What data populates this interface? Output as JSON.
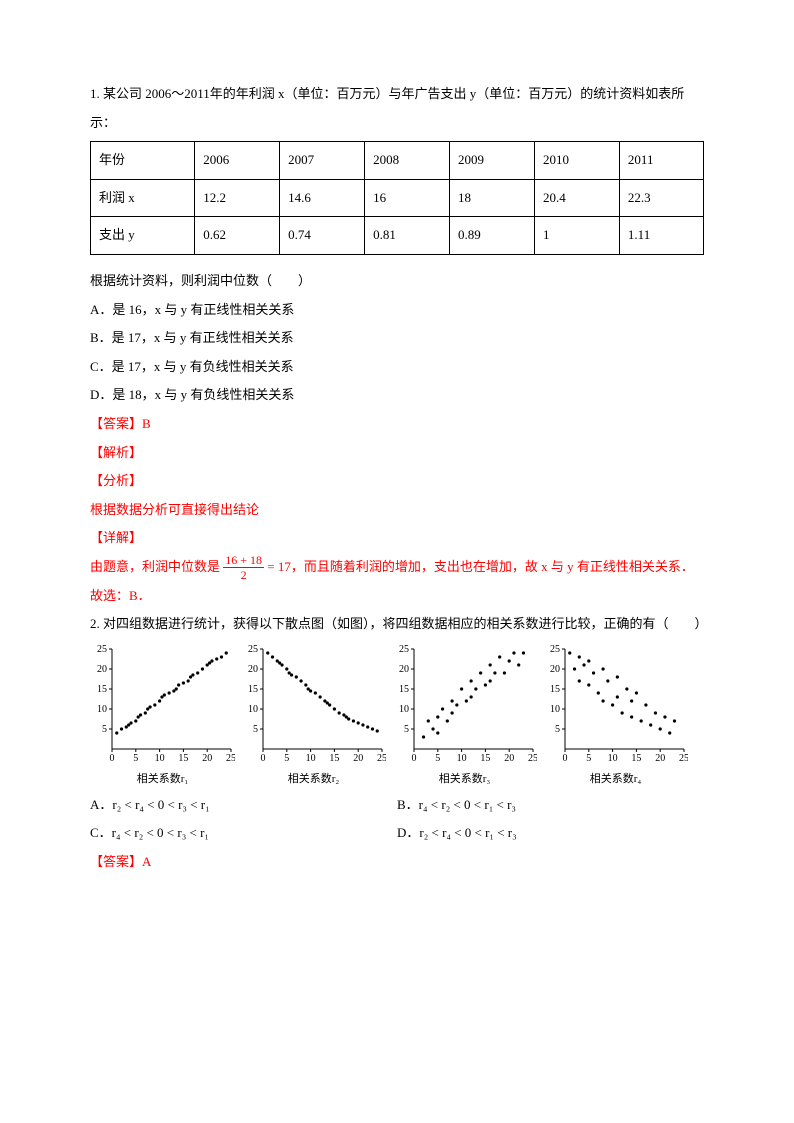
{
  "q1": {
    "intro": "1. 某公司 2006～2011年的年利润 x（单位：百万元）与年广告支出 y（单位：百万元）的统计资料如表所示：",
    "table": {
      "rows": [
        [
          "年份",
          "2006",
          "2007",
          "2008",
          "2009",
          "2010",
          "2011"
        ],
        [
          "利润 x",
          "12.2",
          "14.6",
          "16",
          "18",
          "20.4",
          "22.3"
        ],
        [
          "支出 y",
          "0.62",
          "0.74",
          "0.81",
          "0.89",
          "1",
          "1.11"
        ]
      ],
      "col_widths": [
        "14%",
        "14.3%",
        "14.3%",
        "14.3%",
        "14.3%",
        "14.3%",
        "14.3%"
      ]
    },
    "stem": "根据统计资料，则利润中位数（　　）",
    "opts": {
      "A": "A．是 16，x 与 y 有正线性相关关系",
      "B": "B．是 17，x 与 y 有正线性相关关系",
      "C": "C．是 17，x 与 y 有负线性相关关系",
      "D": "D．是 18，x 与 y 有负线性相关关系"
    },
    "ans": "【答案】B",
    "jiexi": "【解析】",
    "fenxi": "【分析】",
    "fenxi_body": "根据数据分析可直接得出结论",
    "xiangjie": "【详解】",
    "xiangjie_pre": "由题意，利润中位数是 ",
    "frac_num": "16 + 18",
    "frac_den": "2",
    "xiangjie_mid": " = 17，而且随着利润的增加，支出也在增加，故 x 与 y 有正线性相关关系．",
    "guxuan": "故选：B．"
  },
  "q2": {
    "intro": "2. 对四组数据进行统计，获得以下散点图（如图），将四组数据相应的相关系数进行比较，正确的有（　　）",
    "charts": {
      "type": "scatter",
      "width": 145,
      "height": 120,
      "xlim": [
        0,
        25
      ],
      "ylim": [
        0,
        25
      ],
      "xticks": [
        0,
        5,
        10,
        15,
        20,
        25
      ],
      "yticks": [
        5,
        10,
        15,
        20,
        25
      ],
      "axis_color": "#000000",
      "point_color": "#000000",
      "point_radius": 1.6,
      "tick_fontsize": 10,
      "panels": [
        {
          "label": "相关系数r₁",
          "points": [
            [
              1,
              4
            ],
            [
              2,
              5
            ],
            [
              3,
              5.5
            ],
            [
              3.5,
              6
            ],
            [
              4,
              6.5
            ],
            [
              5,
              7
            ],
            [
              5.5,
              8
            ],
            [
              6,
              8.5
            ],
            [
              7,
              9
            ],
            [
              7.5,
              10
            ],
            [
              8,
              10.5
            ],
            [
              9,
              11
            ],
            [
              10,
              12
            ],
            [
              10.5,
              13
            ],
            [
              11,
              13.5
            ],
            [
              12,
              14
            ],
            [
              13,
              14.5
            ],
            [
              13.5,
              15
            ],
            [
              14,
              16
            ],
            [
              15,
              16.5
            ],
            [
              16,
              17
            ],
            [
              16.5,
              18
            ],
            [
              17,
              18.5
            ],
            [
              18,
              19
            ],
            [
              19,
              20
            ],
            [
              20,
              21
            ],
            [
              20.5,
              21.5
            ],
            [
              21,
              22
            ],
            [
              22,
              22.5
            ],
            [
              23,
              23
            ],
            [
              24,
              24
            ]
          ]
        },
        {
          "label": "相关系数r₂",
          "points": [
            [
              1,
              24
            ],
            [
              2,
              23
            ],
            [
              3,
              22
            ],
            [
              3.5,
              21.5
            ],
            [
              4,
              21
            ],
            [
              5,
              20
            ],
            [
              5.5,
              19
            ],
            [
              6,
              18.5
            ],
            [
              7,
              18
            ],
            [
              8,
              17
            ],
            [
              9,
              16
            ],
            [
              9.5,
              15
            ],
            [
              10,
              14.5
            ],
            [
              11,
              14
            ],
            [
              12,
              13
            ],
            [
              13,
              12
            ],
            [
              13.5,
              11.5
            ],
            [
              14,
              11
            ],
            [
              15,
              10
            ],
            [
              16,
              9
            ],
            [
              17,
              8.5
            ],
            [
              17.5,
              8
            ],
            [
              18,
              7.5
            ],
            [
              19,
              7
            ],
            [
              20,
              6.5
            ],
            [
              21,
              6
            ],
            [
              22,
              5.5
            ],
            [
              23,
              5
            ],
            [
              24,
              4.5
            ]
          ]
        },
        {
          "label": "相关系数r₃",
          "points": [
            [
              2,
              3
            ],
            [
              3,
              7
            ],
            [
              4,
              5
            ],
            [
              5,
              8
            ],
            [
              5,
              4
            ],
            [
              6,
              10
            ],
            [
              7,
              7
            ],
            [
              8,
              12
            ],
            [
              8,
              9
            ],
            [
              9,
              11
            ],
            [
              10,
              15
            ],
            [
              11,
              12
            ],
            [
              12,
              17
            ],
            [
              12,
              13
            ],
            [
              13,
              15
            ],
            [
              14,
              19
            ],
            [
              15,
              16
            ],
            [
              16,
              21
            ],
            [
              16,
              17
            ],
            [
              17,
              19
            ],
            [
              18,
              23
            ],
            [
              19,
              19
            ],
            [
              20,
              22
            ],
            [
              21,
              24
            ],
            [
              22,
              21
            ],
            [
              23,
              24
            ]
          ]
        },
        {
          "label": "相关系数r₄",
          "points": [
            [
              1,
              24
            ],
            [
              2,
              20
            ],
            [
              3,
              23
            ],
            [
              3,
              17
            ],
            [
              4,
              21
            ],
            [
              5,
              16
            ],
            [
              5,
              22
            ],
            [
              6,
              19
            ],
            [
              7,
              14
            ],
            [
              8,
              20
            ],
            [
              8,
              12
            ],
            [
              9,
              17
            ],
            [
              10,
              11
            ],
            [
              11,
              18
            ],
            [
              11,
              13
            ],
            [
              12,
              9
            ],
            [
              13,
              15
            ],
            [
              14,
              8
            ],
            [
              14,
              12
            ],
            [
              15,
              14
            ],
            [
              16,
              7
            ],
            [
              17,
              11
            ],
            [
              18,
              6
            ],
            [
              19,
              9
            ],
            [
              20,
              5
            ],
            [
              21,
              8
            ],
            [
              22,
              4
            ],
            [
              23,
              7
            ]
          ]
        }
      ]
    },
    "opts": {
      "A": "A．r₂ < r₄ < 0 < r₃ < r₁",
      "B": "B．r₄ < r₂ < 0 < r₁ < r₃",
      "C": "C．r₄ < r₂ < 0 < r₃ < r₁",
      "D": "D．r₂ < r₄ < 0 < r₁ < r₃"
    },
    "ans": "【答案】A"
  }
}
